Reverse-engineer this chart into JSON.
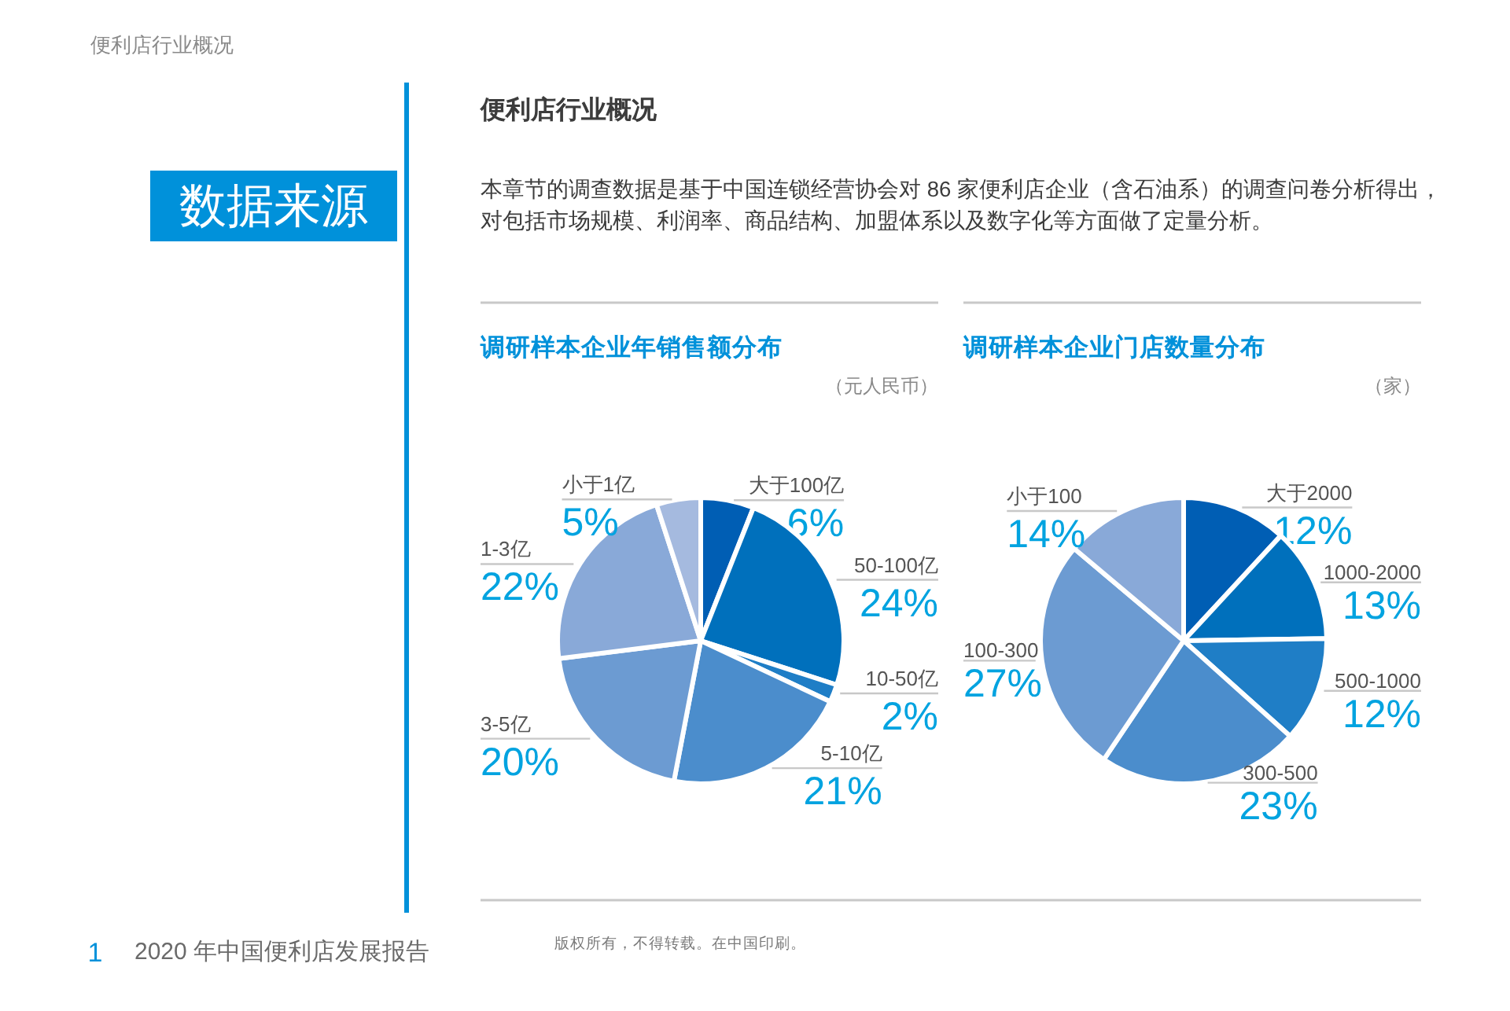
{
  "chart_data": [
    {
      "type": "pie",
      "title": "调研样本企业年销售额分布",
      "subtitle": "（元人民币）",
      "categories": [
        "大于100亿",
        "50-100亿",
        "10-50亿",
        "5-10亿",
        "3-5亿",
        "1-3亿",
        "小于1亿"
      ],
      "values": [
        6,
        24,
        2,
        21,
        20,
        22,
        5
      ],
      "value_labels": [
        "6%",
        "24%",
        "2%",
        "21%",
        "20%",
        "22%",
        "5%"
      ],
      "colors": [
        "#005eb4",
        "#0070bc",
        "#1f7ec6",
        "#4b8dcc",
        "#6c9bd2",
        "#89a9d8",
        "#a5badf"
      ],
      "annotations": [
        "便利店行业概况",
        "数据来源",
        "便利店行业概况",
        "本章节的调查数据是基于中国连锁经营协会对 86 家便利店企业（含石油系）的调查问卷分析得出，对包括市场规模、利润率、商品结构、加盟体系以及数字化等方面做了定量分析。",
        "1",
        "2020 年中国便利店发展报告",
        "版权所有，不得转载。在中国印刷。"
      ]
    },
    {
      "type": "pie",
      "title": "调研样本企业门店数量分布",
      "subtitle": "（家）",
      "categories": [
        "大于2000",
        "1000-2000",
        "500-1000",
        "300-500",
        "100-300",
        "小于100"
      ],
      "values": [
        12,
        13,
        12,
        23,
        27,
        14
      ],
      "value_labels": [
        "12%",
        "13%",
        "12%",
        "23%",
        "27%",
        "14%"
      ],
      "colors": [
        "#005eb4",
        "#0070bc",
        "#1f7ec6",
        "#4b8dcc",
        "#6c9bd2",
        "#89a9d8"
      ]
    }
  ]
}
